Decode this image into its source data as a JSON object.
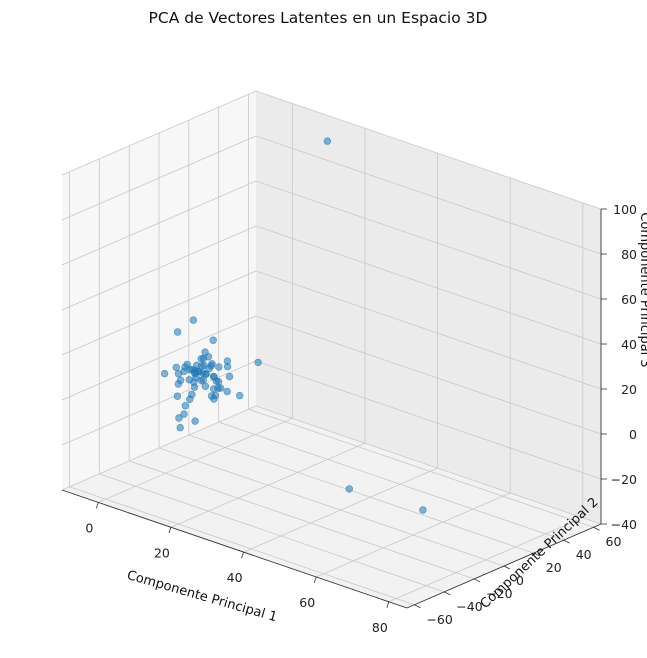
{
  "chart_data": {
    "type": "scatter",
    "projection": "3d",
    "title": "PCA de Vectores Latentes en un Espacio 3D",
    "xlabel": "Componente Principal 1",
    "ylabel": "Componente Principal 2",
    "zlabel": "Componente Principal 3",
    "xlim": [
      -10,
      85
    ],
    "ylim": [
      -65,
      65
    ],
    "zlim": [
      -40,
      100
    ],
    "xticks": [
      "0",
      "20",
      "40",
      "60",
      "80"
    ],
    "yticks": [
      "−60",
      "−40",
      "−20",
      "0",
      "20",
      "40",
      "60"
    ],
    "zticks": [
      "−40",
      "−20",
      "0",
      "20",
      "40",
      "60",
      "80",
      "100"
    ],
    "grid": true,
    "marker_color": "#1f77b4",
    "series": [
      {
        "x": [
          -6,
          -4,
          -3,
          -2,
          -2,
          -1,
          -1,
          -1,
          0,
          0,
          0,
          0,
          0,
          0,
          0,
          1,
          1,
          1,
          1,
          1,
          2,
          2,
          2,
          2,
          2,
          2,
          3,
          3,
          3,
          3,
          4,
          4,
          4,
          5,
          5,
          5,
          6,
          6,
          6,
          7,
          7,
          8,
          8,
          9,
          10,
          11,
          -3,
          -2,
          -1,
          0,
          1,
          2,
          3,
          4,
          1,
          2,
          0,
          -1,
          3,
          2,
          1,
          0,
          14,
          75,
          65,
          22
        ],
        "y": [
          -6,
          -3,
          -4,
          -2,
          -5,
          -1,
          -3,
          2,
          0,
          -2,
          2,
          4,
          -4,
          1,
          -1,
          0,
          2,
          -2,
          3,
          -3,
          0,
          1,
          -1,
          4,
          -5,
          2,
          0,
          2,
          -2,
          5,
          1,
          -3,
          6,
          0,
          -1,
          3,
          -2,
          1,
          7,
          0,
          -3,
          2,
          -6,
          1,
          -3,
          3,
          6,
          -7,
          9,
          12,
          10,
          -5,
          -14,
          -12,
          -10,
          6,
          -12,
          -9,
          -11,
          -15,
          -10,
          -11,
          8,
          -30,
          -55,
          35
        ],
        "z": [
          -3,
          0,
          -2,
          1,
          -4,
          0,
          3,
          -2,
          0,
          1,
          -1,
          4,
          -3,
          2,
          -5,
          0,
          2,
          -2,
          5,
          -6,
          0,
          3,
          -3,
          6,
          1,
          -1,
          0,
          2,
          -2,
          -8,
          4,
          -4,
          2,
          0,
          6,
          -6,
          1,
          -2,
          3,
          -4,
          0,
          8,
          -5,
          2,
          -3,
          -6,
          19,
          18,
          5,
          10,
          -15,
          -20,
          -10,
          -5,
          3,
          -12,
          -8,
          -4,
          -8,
          -20,
          -16,
          -18,
          9,
          -12,
          -1,
          104
        ]
      }
    ]
  }
}
